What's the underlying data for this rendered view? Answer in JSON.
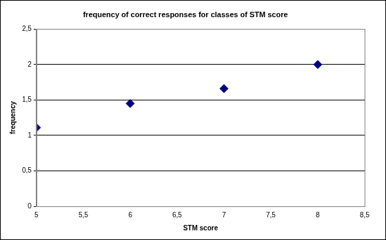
{
  "chart_data": {
    "type": "scatter",
    "title": "frequency of correct responses for classes of STM score",
    "x_label": "STM score",
    "y_label": "frequency",
    "x": [
      5,
      6,
      7,
      8
    ],
    "values": [
      1.11,
      1.45,
      1.66,
      2.0
    ],
    "color": "#000080",
    "marker": "diamond",
    "xlim": [
      5,
      8.5
    ],
    "xticks": [
      5,
      {
        "value": 5.5,
        "label": "5,5"
      },
      6,
      {
        "value": 6.5,
        "label": "6,5"
      },
      7,
      {
        "value": 7.5,
        "label": "7,5"
      },
      8,
      {
        "value": 8.5,
        "label": "8,5"
      }
    ],
    "ylim": [
      0,
      2.5
    ],
    "yticks": [
      0,
      {
        "value": 0.5,
        "label": "0,5"
      },
      1,
      {
        "value": 1.5,
        "label": "1,5"
      },
      2,
      {
        "value": 2.5,
        "label": "2,5"
      }
    ],
    "grid": "y"
  }
}
